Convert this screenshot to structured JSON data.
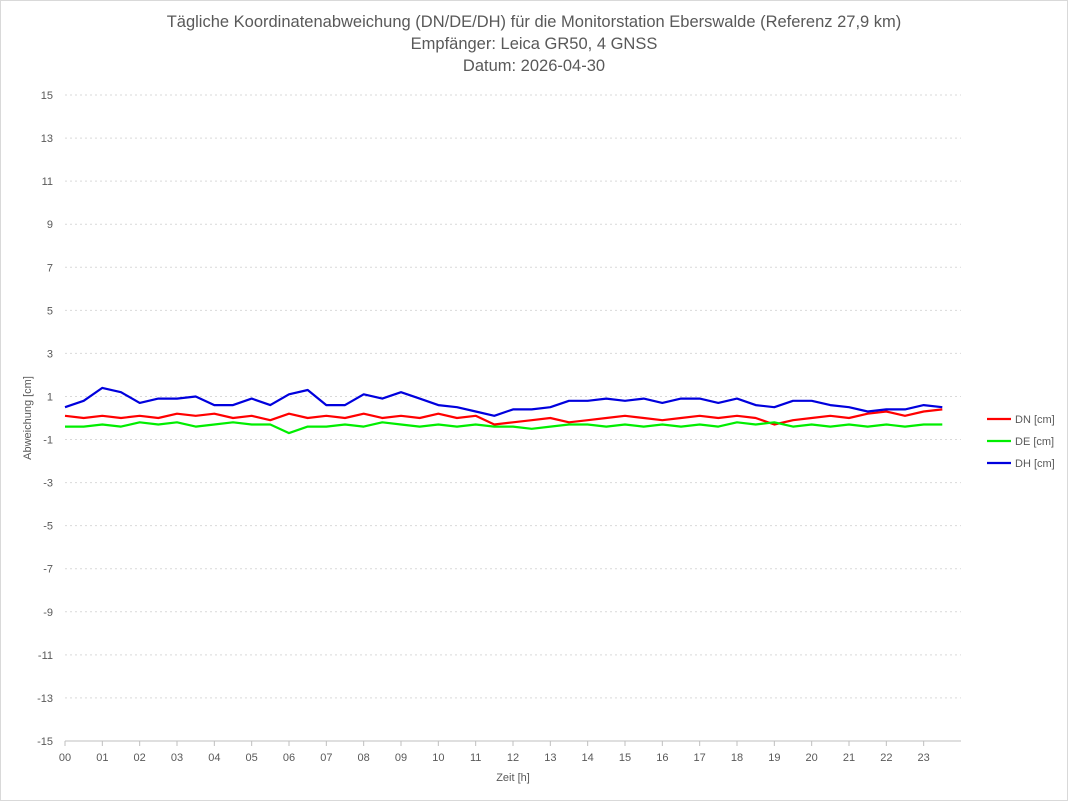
{
  "chart": {
    "title": "Tägliche Koordinatenabweichung (DN/DE/DH) für die Monitorstation Eberswalde (Referenz 27,9 km)",
    "subtitle1": "Empfänger: Leica GR50, 4 GNSS",
    "subtitle2": "Datum: 2026-04-30"
  },
  "chart_data": {
    "type": "line",
    "title": "Tägliche Koordinatenabweichung (DN/DE/DH) für die Monitorstation Eberswalde (Referenz 27,9 km)",
    "xlabel": "Zeit [h]",
    "ylabel": "Abweichung [cm]",
    "xlim": [
      0,
      24
    ],
    "ylim": [
      -15,
      15
    ],
    "x_ticks": [
      "00",
      "01",
      "02",
      "03",
      "04",
      "05",
      "06",
      "07",
      "08",
      "09",
      "10",
      "11",
      "12",
      "13",
      "14",
      "15",
      "16",
      "17",
      "18",
      "19",
      "20",
      "21",
      "22",
      "23"
    ],
    "y_ticks": [
      15,
      13,
      11,
      9,
      7,
      5,
      3,
      1,
      -1,
      -3,
      -5,
      -7,
      -9,
      -11,
      -13,
      -15
    ],
    "grid": "horizontal dashed",
    "legend_position": "right",
    "x": [
      0,
      0.5,
      1,
      1.5,
      2,
      2.5,
      3,
      3.5,
      4,
      4.5,
      5,
      5.5,
      6,
      6.5,
      7,
      7.5,
      8,
      8.5,
      9,
      9.5,
      10,
      10.5,
      11,
      11.5,
      12,
      12.5,
      13,
      13.5,
      14,
      14.5,
      15,
      15.5,
      16,
      16.5,
      17,
      17.5,
      18,
      18.5,
      19,
      19.5,
      20,
      20.5,
      21,
      21.5,
      22,
      22.5,
      23,
      23.5
    ],
    "series": [
      {
        "name": "DN [cm]",
        "color": "#ff0000",
        "values": [
          0.1,
          0.0,
          0.1,
          0.0,
          0.1,
          0.0,
          0.2,
          0.1,
          0.2,
          0.0,
          0.1,
          -0.1,
          0.2,
          0.0,
          0.1,
          0.0,
          0.2,
          0.0,
          0.1,
          0.0,
          0.2,
          0.0,
          0.1,
          -0.3,
          -0.2,
          -0.1,
          0.0,
          -0.2,
          -0.1,
          0.0,
          0.1,
          0.0,
          -0.1,
          0.0,
          0.1,
          0.0,
          0.1,
          0.0,
          -0.3,
          -0.1,
          0.0,
          0.1,
          0.0,
          0.2,
          0.3,
          0.1,
          0.3,
          0.4
        ]
      },
      {
        "name": "DE [cm]",
        "color": "#00ee00",
        "values": [
          -0.4,
          -0.4,
          -0.3,
          -0.4,
          -0.2,
          -0.3,
          -0.2,
          -0.4,
          -0.3,
          -0.2,
          -0.3,
          -0.3,
          -0.7,
          -0.4,
          -0.4,
          -0.3,
          -0.4,
          -0.2,
          -0.3,
          -0.4,
          -0.3,
          -0.4,
          -0.3,
          -0.4,
          -0.4,
          -0.5,
          -0.4,
          -0.3,
          -0.3,
          -0.4,
          -0.3,
          -0.4,
          -0.3,
          -0.4,
          -0.3,
          -0.4,
          -0.2,
          -0.3,
          -0.2,
          -0.4,
          -0.3,
          -0.4,
          -0.3,
          -0.4,
          -0.3,
          -0.4,
          -0.3,
          -0.3
        ]
      },
      {
        "name": "DH [cm]",
        "color": "#0000dd",
        "values": [
          0.5,
          0.8,
          1.4,
          1.2,
          0.7,
          0.9,
          0.9,
          1.0,
          0.6,
          0.6,
          0.9,
          0.6,
          1.1,
          1.3,
          0.6,
          0.6,
          1.1,
          0.9,
          1.2,
          0.9,
          0.6,
          0.5,
          0.3,
          0.1,
          0.4,
          0.4,
          0.5,
          0.8,
          0.8,
          0.9,
          0.8,
          0.9,
          0.7,
          0.9,
          0.9,
          0.7,
          0.9,
          0.6,
          0.5,
          0.8,
          0.8,
          0.6,
          0.5,
          0.3,
          0.4,
          0.4,
          0.6,
          0.5
        ]
      }
    ]
  }
}
